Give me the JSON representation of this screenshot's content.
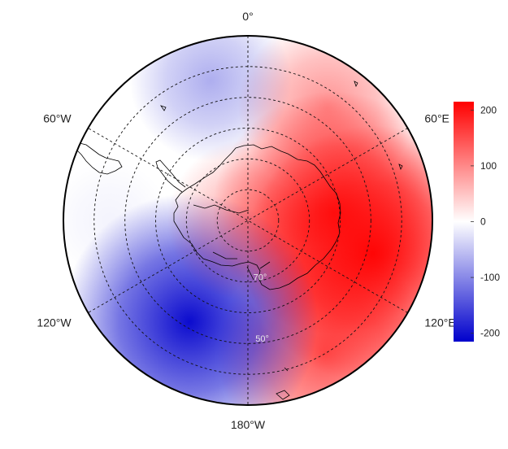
{
  "map": {
    "projection": "south-polar-stereographic",
    "longitude_labels": [
      {
        "lon": 0,
        "text": "0°"
      },
      {
        "lon": 60,
        "text": "60°E"
      },
      {
        "lon": 120,
        "text": "120°E"
      },
      {
        "lon": 180,
        "text": "180°W"
      },
      {
        "lon": -120,
        "text": "120°W"
      },
      {
        "lon": -60,
        "text": "60°W"
      }
    ],
    "latitude_labels": [
      {
        "lat": -70,
        "text": "70°"
      },
      {
        "lat": -50,
        "text": "50°"
      }
    ],
    "graticule": {
      "latitudes": [
        -80,
        -70,
        -60,
        -50,
        -40
      ],
      "longitude_step": 60,
      "style": "dashed"
    },
    "field": {
      "description_units": "anomaly",
      "anomaly_centers": [
        {
          "lon": 105,
          "lat": -48,
          "value": 210
        },
        {
          "lon": 85,
          "lat": -62,
          "value": 190
        },
        {
          "lon": 150,
          "lat": -40,
          "value": 150
        },
        {
          "lon": 35,
          "lat": -45,
          "value": 95
        },
        {
          "lon": -150,
          "lat": -52,
          "value": -210
        },
        {
          "lon": -15,
          "lat": -43,
          "value": -70
        },
        {
          "lon": -90,
          "lat": -45,
          "value": -10
        },
        {
          "lon": 0,
          "lat": -90,
          "value": 70
        }
      ]
    },
    "colors": {
      "negative": "#0000cc",
      "zero": "#ffffff",
      "positive": "#ff0000"
    }
  },
  "colorbar": {
    "min": -215,
    "max": 215,
    "ticks": [
      {
        "value": 200,
        "label": "200"
      },
      {
        "value": 100,
        "label": "100"
      },
      {
        "value": 0,
        "label": "0"
      },
      {
        "value": -100,
        "label": "-100"
      },
      {
        "value": -200,
        "label": "-200"
      }
    ]
  }
}
